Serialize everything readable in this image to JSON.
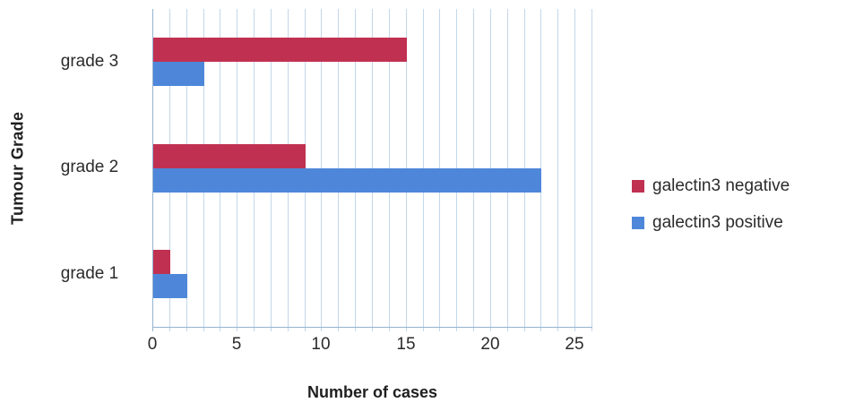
{
  "chart_data": {
    "type": "bar",
    "orientation": "horizontal",
    "title": "",
    "xlabel": "Number of cases",
    "ylabel": "Tumour Grade",
    "categories": [
      "grade 3",
      "grade 2",
      "grade 1"
    ],
    "series": [
      {
        "name": "galectin3 negative",
        "color": "#c03151",
        "values": [
          15,
          9,
          1
        ]
      },
      {
        "name": "galectin3 positive",
        "color": "#4e87d9",
        "values": [
          3,
          23,
          2
        ]
      }
    ],
    "xlim": [
      0,
      26
    ],
    "xticks": [
      0,
      5,
      10,
      15,
      20,
      25
    ],
    "grid": "vertical minor gridlines every 1 unit",
    "legend_position": "right"
  }
}
